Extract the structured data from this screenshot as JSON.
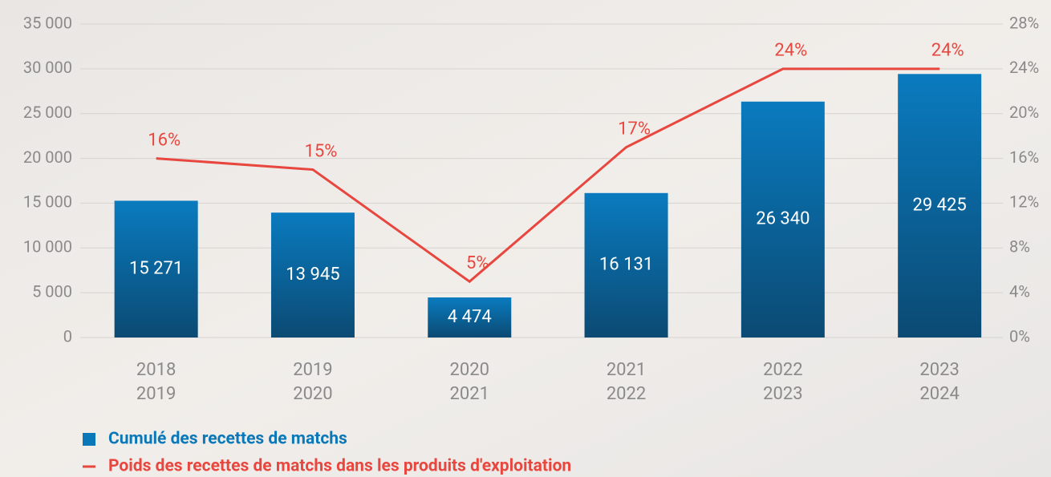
{
  "chart_data": {
    "type": "combo",
    "categories": [
      [
        "2018",
        "2019"
      ],
      [
        "2019",
        "2020"
      ],
      [
        "2020",
        "2021"
      ],
      [
        "2021",
        "2022"
      ],
      [
        "2022",
        "2023"
      ],
      [
        "2023",
        "2024"
      ]
    ],
    "series": [
      {
        "name": "Cumulé des recettes de matchs",
        "type": "bar",
        "color": "#0a78b8",
        "values": [
          15271,
          13945,
          4474,
          16131,
          26340,
          29425
        ],
        "value_labels": [
          "15 271",
          "13 945",
          "4 474",
          "16 131",
          "26 340",
          "29 425"
        ]
      },
      {
        "name": "Poids des recettes de matchs dans les produits d'exploitation",
        "type": "line",
        "axis": "y2",
        "color": "#e8473f",
        "values": [
          16,
          15,
          5,
          17,
          24,
          24
        ],
        "value_labels": [
          "16%",
          "15%",
          "5%",
          "17%",
          "24%",
          "24%"
        ]
      }
    ],
    "ylim": [
      0,
      35000
    ],
    "yticks": [
      0,
      {
        "value": 5000,
        "label": "5 000"
      },
      {
        "value": 10000,
        "label": "10 000"
      },
      {
        "value": 15000,
        "label": "15 000"
      },
      {
        "value": 20000,
        "label": "20 000"
      },
      {
        "value": 25000,
        "label": "25 000"
      },
      {
        "value": 30000,
        "label": "30 000"
      },
      {
        "value": 35000,
        "label": "35 000"
      }
    ],
    "y2lim": [
      0,
      28
    ],
    "y2ticks": [
      {
        "value": 0,
        "label": "0%"
      },
      {
        "value": 4,
        "label": "4%"
      },
      {
        "value": 8,
        "label": "8%"
      },
      {
        "value": 12,
        "label": "12%"
      },
      {
        "value": 16,
        "label": "16%"
      },
      {
        "value": 20,
        "label": "20%"
      },
      {
        "value": 24,
        "label": "24%"
      },
      {
        "value": 28,
        "label": "28%"
      }
    ],
    "grid": true
  }
}
